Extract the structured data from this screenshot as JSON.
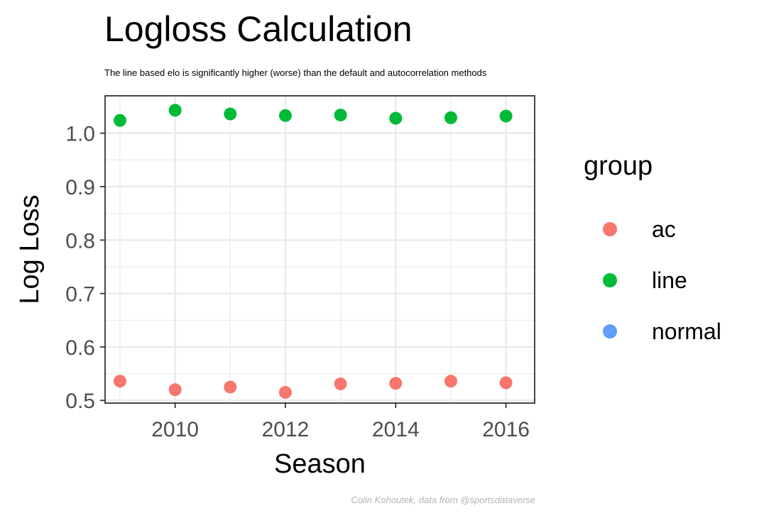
{
  "title": "Logloss Calculation",
  "subtitle": "The line based elo is significantly higher (worse) than the default and autocorrelation methods",
  "caption": "Colin Kohoutek, data from @sportsdataverse",
  "legend": {
    "title": "group",
    "items": [
      {
        "label": "ac",
        "color": "#F8766D"
      },
      {
        "label": "line",
        "color": "#00BA38"
      },
      {
        "label": "normal",
        "color": "#619CFF"
      }
    ]
  },
  "chart_data": {
    "type": "scatter",
    "title": "Logloss Calculation",
    "xlabel": "Season",
    "ylabel": "Log Loss",
    "xlim": [
      2008.73,
      2016.52
    ],
    "ylim": [
      0.495,
      1.07
    ],
    "xticks": [
      2010,
      2012,
      2014,
      2016
    ],
    "yticks": [
      0.5,
      0.6,
      0.7,
      0.8,
      0.9,
      1.0
    ],
    "ytick_labels": [
      "0.5",
      "0.6",
      "0.7",
      "0.8",
      "0.9",
      "1.0"
    ],
    "grid": true,
    "legend_position": "right",
    "series": [
      {
        "name": "ac",
        "color": "#F8766D",
        "x": [
          2009,
          2010,
          2011,
          2012,
          2013,
          2014,
          2015,
          2016
        ],
        "y": [
          0.536,
          0.52,
          0.525,
          0.515,
          0.531,
          0.532,
          0.536,
          0.533
        ]
      },
      {
        "name": "line",
        "color": "#00BA38",
        "x": [
          2009,
          2010,
          2011,
          2012,
          2013,
          2014,
          2015,
          2016
        ],
        "y": [
          1.024,
          1.043,
          1.036,
          1.033,
          1.034,
          1.028,
          1.029,
          1.032
        ]
      },
      {
        "name": "normal",
        "color": "#619CFF",
        "x": [],
        "y": []
      }
    ]
  }
}
